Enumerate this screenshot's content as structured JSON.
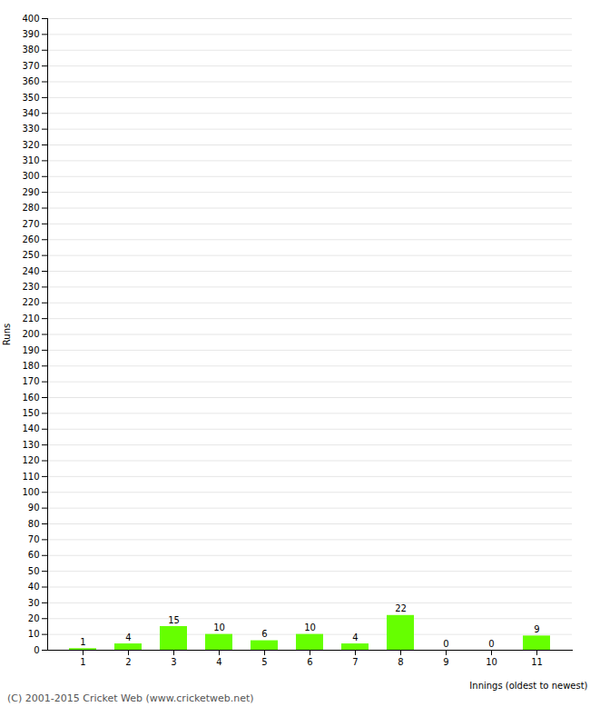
{
  "chart_data": {
    "type": "bar",
    "xlabel": "Innings (oldest to newest)",
    "ylabel": "Runs",
    "annotations": [
      "(C) 2001-2015 Cricket Web (www.cricketweb.net)"
    ],
    "categories": [
      "1",
      "2",
      "3",
      "4",
      "5",
      "6",
      "7",
      "8",
      "9",
      "10",
      "11"
    ],
    "values": [
      1,
      4,
      15,
      10,
      6,
      10,
      4,
      22,
      0,
      0,
      9
    ],
    "color": "#66ff00",
    "ylim": [
      0,
      400
    ],
    "yticks": [
      0,
      10,
      20,
      30,
      40,
      50,
      60,
      70,
      80,
      90,
      100,
      110,
      120,
      130,
      140,
      150,
      160,
      170,
      180,
      190,
      200,
      210,
      220,
      230,
      240,
      250,
      260,
      270,
      280,
      290,
      300,
      310,
      320,
      330,
      340,
      350,
      360,
      370,
      380,
      390,
      400
    ],
    "grid": true,
    "data_labels": true
  }
}
